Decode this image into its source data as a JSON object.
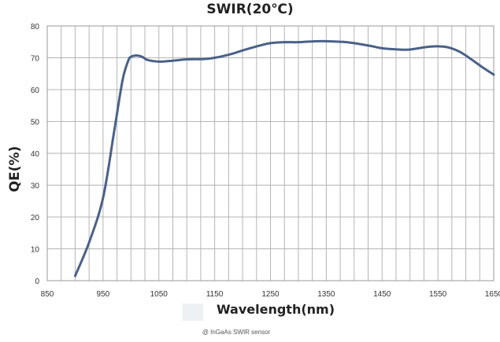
{
  "chart_data": {
    "type": "line",
    "title": "SWIR(20℃)",
    "xlabel": "Wavelength(nm)",
    "ylabel": "QE(%)",
    "xlim": [
      850,
      1650
    ],
    "ylim": [
      0,
      80
    ],
    "xticks": [
      "850",
      "950",
      "1050",
      "1150",
      "1250",
      "1350",
      "1450",
      "1550",
      "1650"
    ],
    "yticks": [
      "0",
      "10",
      "20",
      "30",
      "40",
      "50",
      "60",
      "70",
      "80"
    ],
    "grid": true,
    "series": [
      {
        "color": "#4a6187",
        "x": [
          900,
          925,
          950,
          970,
          985,
          995,
          1000,
          1010,
          1020,
          1030,
          1050,
          1070,
          1100,
          1130,
          1150,
          1180,
          1200,
          1230,
          1250,
          1275,
          1300,
          1330,
          1350,
          1380,
          1400,
          1430,
          1450,
          1480,
          1500,
          1530,
          1550,
          1570,
          1590,
          1610,
          1630,
          1650
        ],
        "y": [
          1.5,
          12,
          26,
          47,
          63,
          69,
          70.3,
          70.7,
          70.3,
          69.3,
          68.8,
          69,
          69.5,
          69.6,
          70,
          71.2,
          72.3,
          73.8,
          74.6,
          74.9,
          74.9,
          75.2,
          75.2,
          75,
          74.6,
          73.7,
          73,
          72.6,
          72.6,
          73.4,
          73.6,
          73.2,
          71.8,
          69.5,
          67,
          64.7
        ]
      }
    ]
  },
  "caption": "@ InGaAs SWIR sensor"
}
